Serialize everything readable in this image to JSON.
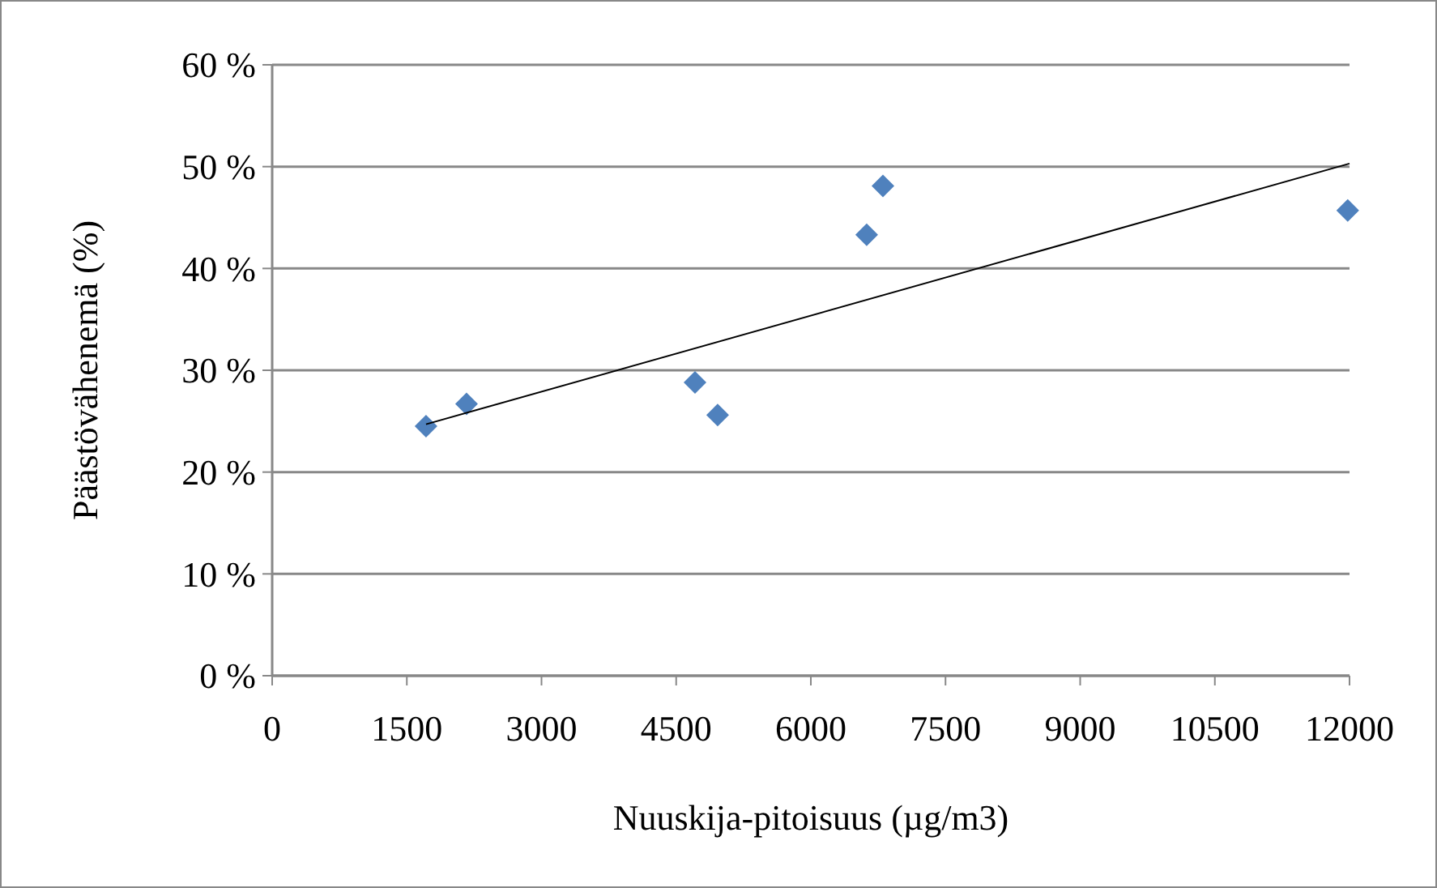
{
  "chart_data": {
    "type": "scatter",
    "xlabel": "Nuuskija-pitoisuus (µg/m3)",
    "ylabel": "Päästövähenemä (%)",
    "xlim": [
      0,
      12000
    ],
    "xticks": [
      0,
      1500,
      3000,
      4500,
      6000,
      7500,
      9000,
      10500,
      12000
    ],
    "ylim": [
      0,
      60
    ],
    "yticks": [
      {
        "value": 0,
        "label": "0 %"
      },
      {
        "value": 10,
        "label": "10 %"
      },
      {
        "value": 20,
        "label": "20 %"
      },
      {
        "value": 30,
        "label": "30 %"
      },
      {
        "value": 40,
        "label": "40 %"
      },
      {
        "value": 50,
        "label": "50 %"
      },
      {
        "value": 60,
        "label": "60 %"
      }
    ],
    "grid": "y",
    "series": [
      {
        "color": "#4f81bd",
        "marker": "diamond",
        "x": [
          1714,
          2165,
          4710,
          4962,
          6622,
          6803,
          11980
        ],
        "values": [
          24.5,
          26.7,
          28.8,
          25.6,
          43.3,
          48.1,
          45.7
        ]
      },
      {
        "type": "line",
        "color": "#000000",
        "marker": "none",
        "line_style": "solid",
        "x": [
          1714,
          12000
        ],
        "values": [
          24.7,
          50.3
        ]
      }
    ]
  }
}
